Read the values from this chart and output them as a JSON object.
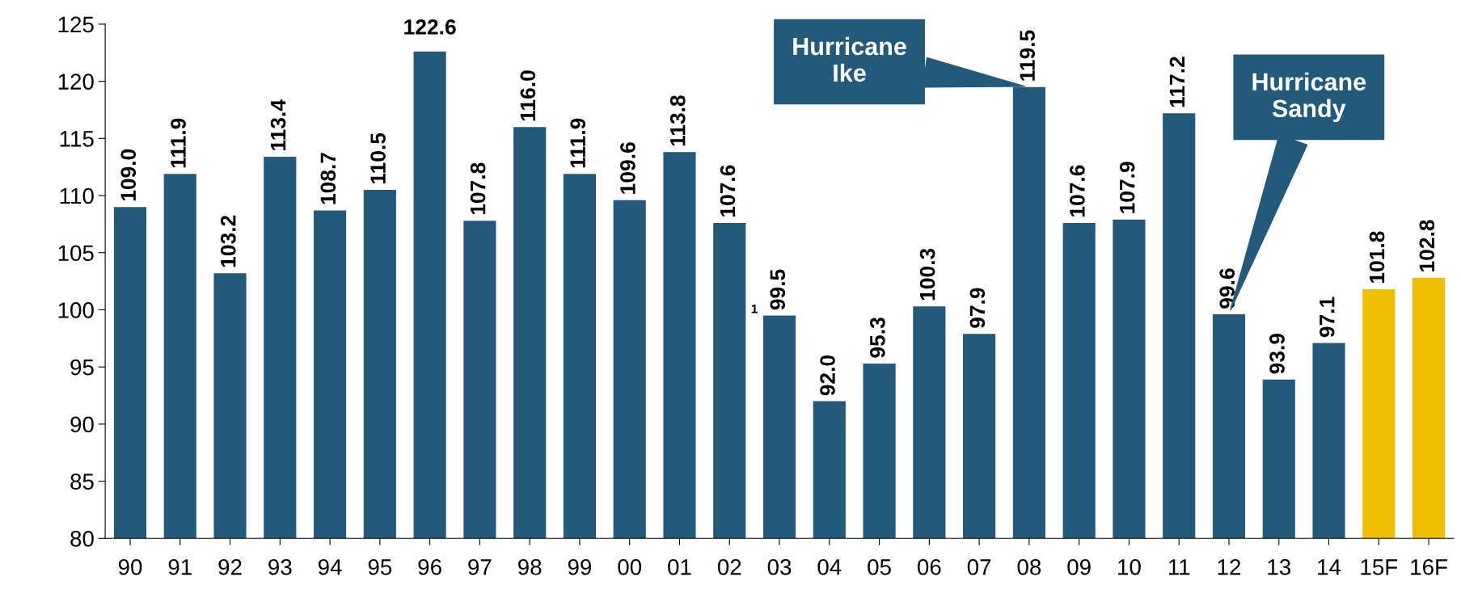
{
  "chart_data": {
    "type": "bar",
    "categories": [
      "90",
      "91",
      "92",
      "93",
      "94",
      "95",
      "96",
      "97",
      "98",
      "99",
      "00",
      "01",
      "02",
      "03",
      "04",
      "05",
      "06",
      "07",
      "08",
      "09",
      "10",
      "11",
      "12",
      "13",
      "14",
      "15F",
      "16F"
    ],
    "values": [
      109.0,
      111.9,
      103.2,
      113.4,
      108.7,
      110.5,
      122.6,
      107.8,
      116.0,
      111.9,
      109.6,
      113.8,
      107.6,
      99.5,
      92.0,
      95.3,
      100.3,
      97.9,
      119.5,
      107.6,
      107.9,
      117.2,
      99.6,
      93.9,
      97.1,
      101.8,
      102.8
    ],
    "colors": [
      "#235a7a",
      "#235a7a",
      "#235a7a",
      "#235a7a",
      "#235a7a",
      "#235a7a",
      "#235a7a",
      "#235a7a",
      "#235a7a",
      "#235a7a",
      "#235a7a",
      "#235a7a",
      "#235a7a",
      "#235a7a",
      "#235a7a",
      "#235a7a",
      "#235a7a",
      "#235a7a",
      "#235a7a",
      "#235a7a",
      "#235a7a",
      "#235a7a",
      "#235a7a",
      "#235a7a",
      "#235a7a",
      "#f0c000",
      "#f0c000"
    ],
    "ylim": [
      80,
      125
    ],
    "yticks": [
      80,
      85,
      90,
      95,
      100,
      105,
      110,
      115,
      120,
      125
    ],
    "value_labels": [
      "109.0",
      "111.9",
      "103.2",
      "113.4",
      "108.7",
      "110.5",
      "122.6",
      "107.8",
      "116.0",
      "111.9",
      "109.6",
      "113.8",
      "107.6",
      "99.5",
      "92.0",
      "95.3",
      "100.3",
      "97.9",
      "119.5",
      "107.6",
      "107.9",
      "117.2",
      "99.6",
      "93.9",
      "97.1",
      "101.8",
      "102.8"
    ],
    "grid": false,
    "legend": false,
    "annotations": [
      {
        "text": "Hurricane\nIke",
        "x": "08",
        "y": 119.5
      },
      {
        "text": "Hurricane\nSandy",
        "x": "12",
        "y": 99.6
      },
      "1"
    ]
  }
}
